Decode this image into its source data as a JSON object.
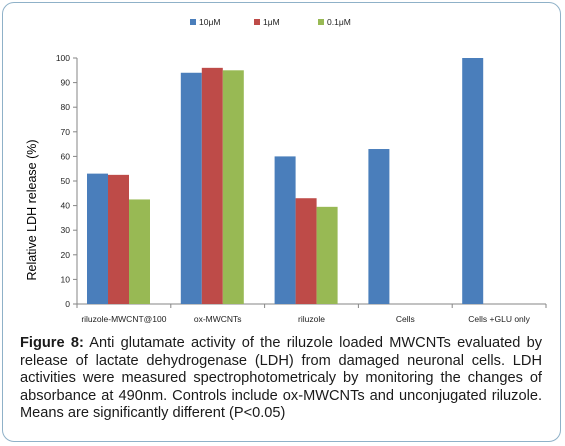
{
  "chart_data": {
    "type": "bar",
    "categories": [
      "riluzole-MWCNT@100",
      "ox-MWCNTs",
      "riluzole",
      "Cells",
      "Cells +GLU only"
    ],
    "series": [
      {
        "name": "10μM",
        "color": "#4a7ebb",
        "values": [
          53,
          94,
          60,
          63,
          100
        ]
      },
      {
        "name": "1μM",
        "color": "#be4b48",
        "values": [
          52.5,
          96,
          43,
          null,
          null
        ]
      },
      {
        "name": "0.1μM",
        "color": "#98b954",
        "values": [
          42.5,
          95,
          39.5,
          null,
          null
        ]
      }
    ],
    "ylabel": "Relative LDH release (%)",
    "ylim": [
      0,
      100
    ],
    "yticks": [
      0,
      10,
      20,
      30,
      40,
      50,
      60,
      70,
      80,
      90,
      100
    ],
    "grid": false,
    "legend": "top"
  },
  "caption": {
    "label": "Figure 8:",
    "text": " Anti glutamate activity of the riluzole loaded MWCNTs evaluated by release of lactate dehydrogenase (LDH) from damaged neuronal cells. LDH activities were measured spectrophotometricaly by monitoring the changes of absorbance at 490nm. Controls include ox-MWCNTs and unconjugated riluzole. Means are significantly different (P<0.05)"
  }
}
